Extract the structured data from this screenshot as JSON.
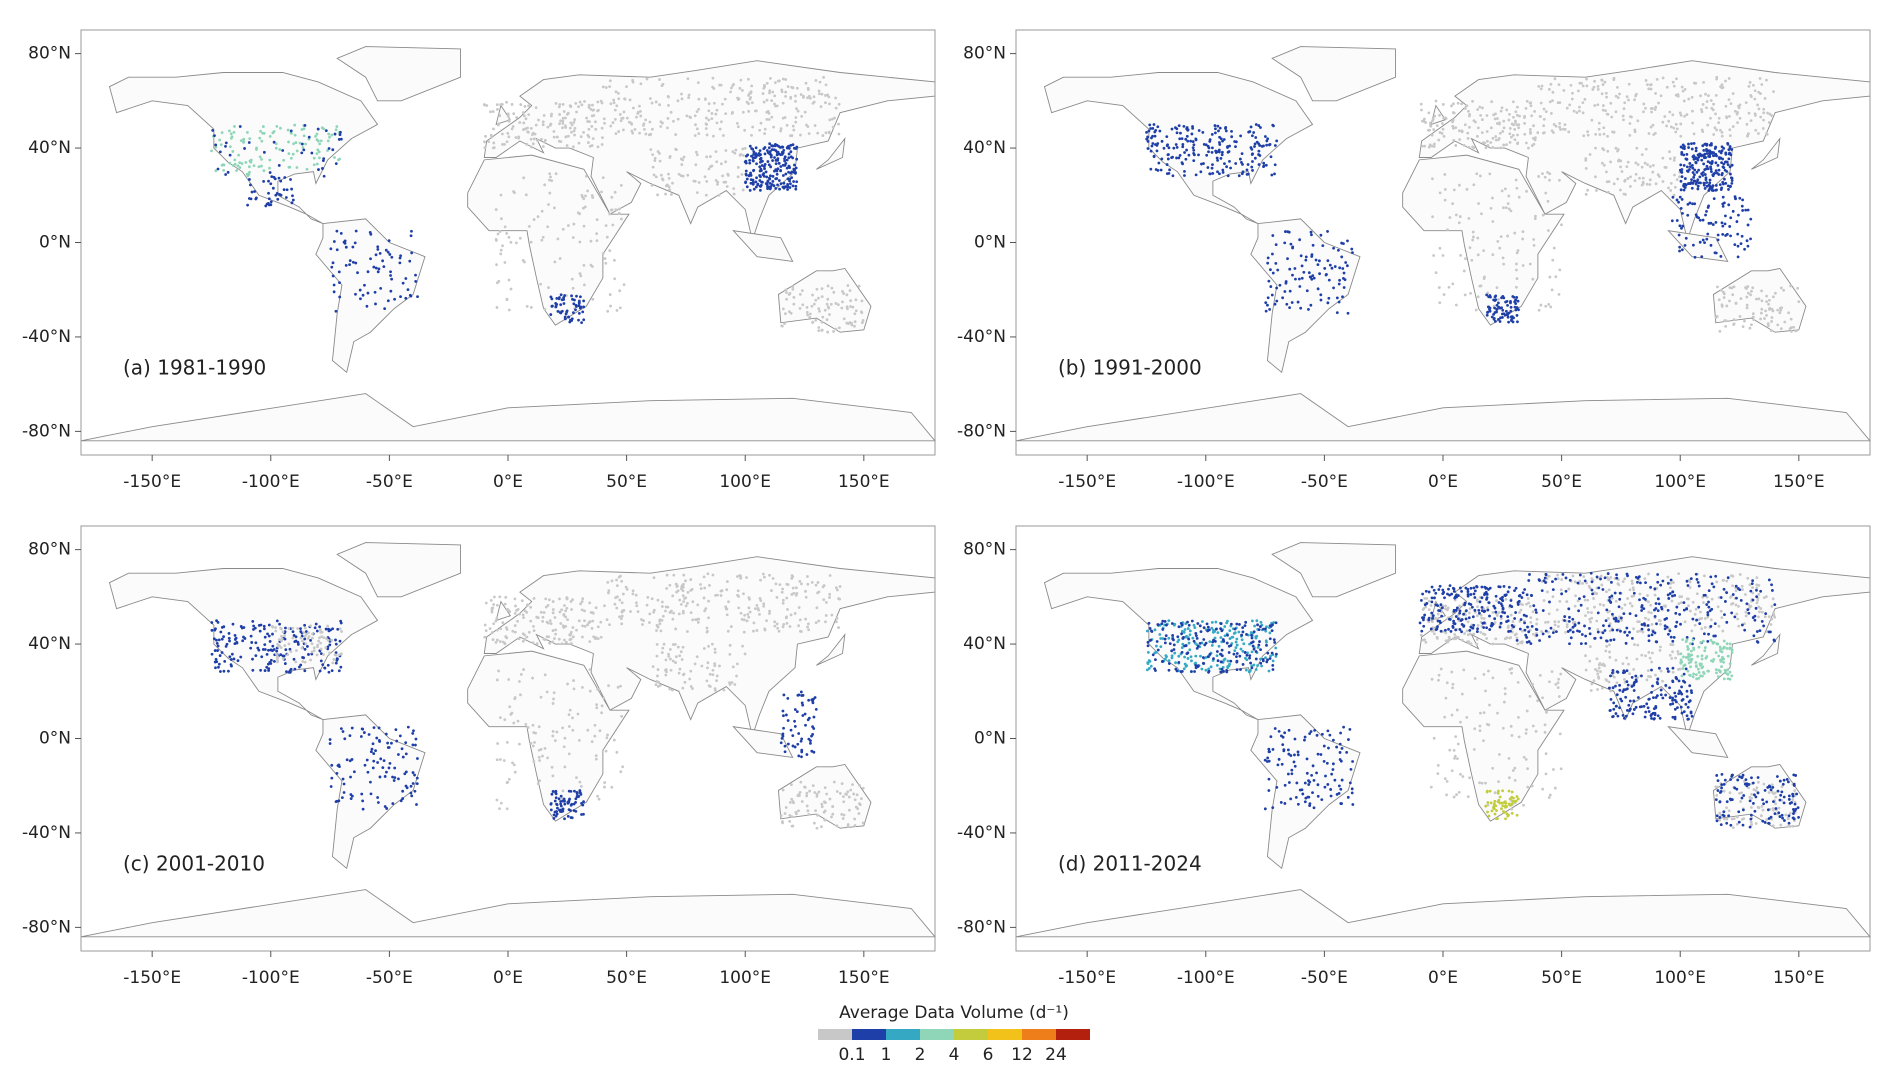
{
  "panels": [
    {
      "label": "(a) 1981-1990"
    },
    {
      "label": "(b) 1991-2000"
    },
    {
      "label": "(c) 2001-2010"
    },
    {
      "label": "(d) 2011-2024"
    }
  ],
  "xlim": [
    -180,
    180
  ],
  "ylim": [
    -90,
    90
  ],
  "x_axis": {
    "ticks": [
      {
        "value": -150,
        "label": "-150°E"
      },
      {
        "value": -100,
        "label": "-100°E"
      },
      {
        "value": -50,
        "label": "-50°E"
      },
      {
        "value": 0,
        "label": "0°E"
      },
      {
        "value": 50,
        "label": "50°E"
      },
      {
        "value": 100,
        "label": "100°E"
      },
      {
        "value": 150,
        "label": "150°E"
      }
    ]
  },
  "y_axis": {
    "ticks": [
      {
        "value": 80,
        "label": "80°N"
      },
      {
        "value": 40,
        "label": "40°N"
      },
      {
        "value": 0,
        "label": "0°N"
      },
      {
        "value": -40,
        "label": "-40°N"
      },
      {
        "value": -80,
        "label": "-80°N"
      }
    ]
  },
  "colorbar": {
    "title": "Average Data Volume (d⁻¹)",
    "colors": [
      "#c8c8c8",
      "#1f3fa8",
      "#35a9c4",
      "#8fd6b8",
      "#c2cc3c",
      "#f2c21b",
      "#ee7e1a",
      "#b3200e"
    ],
    "ticks": [
      "0.1",
      "1",
      "2",
      "4",
      "6",
      "12",
      "24"
    ]
  }
}
